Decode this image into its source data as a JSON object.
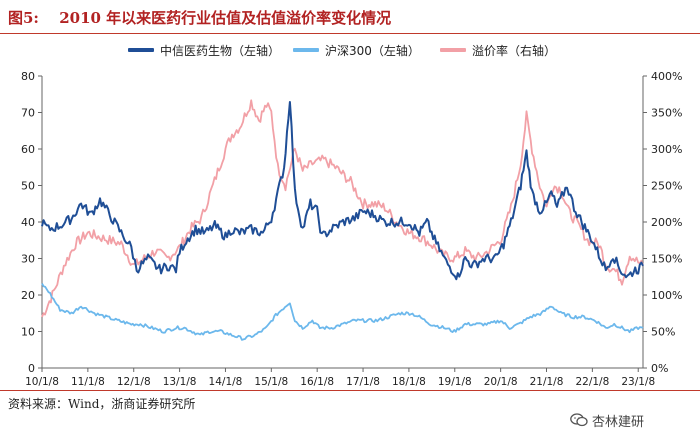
{
  "figure": {
    "title": "图5:　 2010 年以来医药行业估值及估值溢价率变化情况",
    "source": "资料来源：Wind，浙商证券研究所",
    "watermark": "杏林建研"
  },
  "colors": {
    "pharma": "#1f4e96",
    "hs300": "#6cb8ec",
    "premium": "#f2a0a6",
    "title": "#b22222",
    "axis": "#666666"
  },
  "chart_data": {
    "type": "line",
    "legend_position": "top",
    "grid": false,
    "x_ticks": [
      "10/1/8",
      "11/1/8",
      "12/1/8",
      "13/1/8",
      "14/1/8",
      "15/1/8",
      "16/1/8",
      "17/1/8",
      "18/1/8",
      "19/1/8",
      "20/1/8",
      "21/1/8",
      "22/1/8",
      "23/1/8"
    ],
    "y_left": {
      "min": 0,
      "max": 80,
      "ticks": [
        "0",
        "10",
        "20",
        "30",
        "40",
        "50",
        "60",
        "70",
        "80"
      ]
    },
    "y_right": {
      "min": 0,
      "max": 400,
      "ticks": [
        "0%",
        "50%",
        "100%",
        "150%",
        "200%",
        "250%",
        "300%",
        "350%",
        "400%"
      ]
    },
    "series": [
      {
        "name": "中信医药生物（左轴）",
        "axis": "left",
        "color_key": "pharma",
        "points": [
          [
            "2010-01-08",
            40
          ],
          [
            "2010-03-01",
            38
          ],
          [
            "2010-06-01",
            39
          ],
          [
            "2010-09-01",
            41
          ],
          [
            "2010-11-15",
            45
          ],
          [
            "2011-02-01",
            42
          ],
          [
            "2011-04-15",
            46
          ],
          [
            "2011-07-01",
            42
          ],
          [
            "2011-10-01",
            37
          ],
          [
            "2011-12-20",
            33
          ],
          [
            "2012-02-01",
            27
          ],
          [
            "2012-05-01",
            30
          ],
          [
            "2012-08-01",
            27
          ],
          [
            "2012-10-15",
            28
          ],
          [
            "2012-12-10",
            27
          ],
          [
            "2013-01-08",
            32
          ],
          [
            "2013-03-01",
            35
          ],
          [
            "2013-05-15",
            38
          ],
          [
            "2013-08-01",
            37
          ],
          [
            "2013-10-15",
            39
          ],
          [
            "2014-01-08",
            36
          ],
          [
            "2014-03-01",
            38
          ],
          [
            "2014-05-01",
            37
          ],
          [
            "2014-08-01",
            38
          ],
          [
            "2014-11-01",
            37
          ],
          [
            "2015-01-08",
            41
          ],
          [
            "2015-03-01",
            48
          ],
          [
            "2015-04-20",
            55
          ],
          [
            "2015-06-05",
            74
          ],
          [
            "2015-07-15",
            48
          ],
          [
            "2015-09-15",
            38
          ],
          [
            "2015-11-15",
            45
          ],
          [
            "2016-01-08",
            43
          ],
          [
            "2016-02-15",
            36
          ],
          [
            "2016-05-01",
            38
          ],
          [
            "2016-08-01",
            40
          ],
          [
            "2016-11-01",
            41
          ],
          [
            "2017-01-08",
            43
          ],
          [
            "2017-04-01",
            42
          ],
          [
            "2017-07-01",
            40
          ],
          [
            "2017-10-01",
            40
          ],
          [
            "2018-01-08",
            40
          ],
          [
            "2018-04-01",
            37
          ],
          [
            "2018-06-01",
            40
          ],
          [
            "2018-08-01",
            35
          ],
          [
            "2018-11-01",
            29
          ],
          [
            "2019-01-08",
            26
          ],
          [
            "2019-02-01",
            25
          ],
          [
            "2019-04-01",
            30
          ],
          [
            "2019-06-01",
            28
          ],
          [
            "2019-09-01",
            30
          ],
          [
            "2019-12-01",
            30
          ],
          [
            "2020-02-01",
            34
          ],
          [
            "2020-04-01",
            40
          ],
          [
            "2020-06-15",
            50
          ],
          [
            "2020-08-01",
            59
          ],
          [
            "2020-09-15",
            48
          ],
          [
            "2020-11-15",
            43
          ],
          [
            "2021-01-08",
            45
          ],
          [
            "2021-02-15",
            48
          ],
          [
            "2021-04-01",
            44
          ],
          [
            "2021-06-20",
            50
          ],
          [
            "2021-08-15",
            44
          ],
          [
            "2021-10-15",
            40
          ],
          [
            "2022-01-08",
            35
          ],
          [
            "2022-03-01",
            31
          ],
          [
            "2022-04-25",
            27
          ],
          [
            "2022-06-20",
            31
          ],
          [
            "2022-08-15",
            27
          ],
          [
            "2022-10-15",
            25
          ],
          [
            "2022-12-15",
            27
          ],
          [
            "2023-01-08",
            27
          ],
          [
            "2023-02-15",
            28
          ]
        ]
      },
      {
        "name": "沪深300（左轴）",
        "axis": "left",
        "color_key": "hs300",
        "points": [
          [
            "2010-01-08",
            23
          ],
          [
            "2010-03-01",
            21
          ],
          [
            "2010-06-01",
            16
          ],
          [
            "2010-09-01",
            15
          ],
          [
            "2010-11-15",
            17
          ],
          [
            "2011-03-01",
            15
          ],
          [
            "2011-06-01",
            14
          ],
          [
            "2011-09-01",
            13
          ],
          [
            "2011-12-20",
            12
          ],
          [
            "2012-03-01",
            12
          ],
          [
            "2012-06-01",
            11
          ],
          [
            "2012-09-01",
            10
          ],
          [
            "2012-12-10",
            11
          ],
          [
            "2013-02-15",
            11
          ],
          [
            "2013-06-20",
            9
          ],
          [
            "2013-09-01",
            10
          ],
          [
            "2013-12-01",
            10
          ],
          [
            "2014-03-01",
            9
          ],
          [
            "2014-06-01",
            8
          ],
          [
            "2014-09-01",
            9
          ],
          [
            "2014-12-01",
            11
          ],
          [
            "2015-02-01",
            14
          ],
          [
            "2015-04-01",
            16
          ],
          [
            "2015-06-05",
            18
          ],
          [
            "2015-07-15",
            13
          ],
          [
            "2015-09-15",
            11
          ],
          [
            "2015-12-01",
            13
          ],
          [
            "2016-01-29",
            11
          ],
          [
            "2016-05-01",
            11
          ],
          [
            "2016-08-01",
            12
          ],
          [
            "2016-11-01",
            13
          ],
          [
            "2017-02-01",
            13
          ],
          [
            "2017-05-01",
            13
          ],
          [
            "2017-08-01",
            14
          ],
          [
            "2017-11-01",
            15
          ],
          [
            "2018-01-24",
            15
          ],
          [
            "2018-04-01",
            14
          ],
          [
            "2018-07-01",
            12
          ],
          [
            "2018-10-15",
            11
          ],
          [
            "2019-01-04",
            10
          ],
          [
            "2019-04-01",
            12
          ],
          [
            "2019-07-01",
            12
          ],
          [
            "2019-10-01",
            12
          ],
          [
            "2020-01-08",
            13
          ],
          [
            "2020-03-20",
            11
          ],
          [
            "2020-06-01",
            12
          ],
          [
            "2020-09-01",
            14
          ],
          [
            "2020-12-01",
            15
          ],
          [
            "2021-02-15",
            17
          ],
          [
            "2021-05-01",
            15
          ],
          [
            "2021-08-01",
            14
          ],
          [
            "2021-11-01",
            14
          ],
          [
            "2022-02-01",
            13
          ],
          [
            "2022-04-25",
            11
          ],
          [
            "2022-07-01",
            12
          ],
          [
            "2022-10-31",
            10
          ],
          [
            "2023-01-08",
            11
          ],
          [
            "2023-02-15",
            11
          ]
        ]
      },
      {
        "name": "溢价率（右轴）",
        "axis": "right",
        "color_key": "premium",
        "points": [
          [
            "2010-01-08",
            70
          ],
          [
            "2010-04-01",
            100
          ],
          [
            "2010-07-01",
            140
          ],
          [
            "2010-10-01",
            170
          ],
          [
            "2011-01-08",
            185
          ],
          [
            "2011-04-01",
            180
          ],
          [
            "2011-07-01",
            175
          ],
          [
            "2011-10-01",
            170
          ],
          [
            "2012-01-08",
            140
          ],
          [
            "2012-04-01",
            150
          ],
          [
            "2012-07-01",
            160
          ],
          [
            "2012-10-01",
            150
          ],
          [
            "2013-01-08",
            165
          ],
          [
            "2013-04-01",
            190
          ],
          [
            "2013-07-01",
            205
          ],
          [
            "2013-10-01",
            250
          ],
          [
            "2014-01-08",
            300
          ],
          [
            "2014-03-01",
            320
          ],
          [
            "2014-05-01",
            330
          ],
          [
            "2014-08-01",
            365
          ],
          [
            "2014-10-01",
            340
          ],
          [
            "2014-12-01",
            360
          ],
          [
            "2015-01-08",
            350
          ],
          [
            "2015-03-01",
            275
          ],
          [
            "2015-05-01",
            250
          ],
          [
            "2015-07-15",
            300
          ],
          [
            "2015-09-15",
            270
          ],
          [
            "2015-12-01",
            280
          ],
          [
            "2016-03-01",
            285
          ],
          [
            "2016-06-01",
            275
          ],
          [
            "2016-10-01",
            255
          ],
          [
            "2017-01-08",
            225
          ],
          [
            "2017-04-01",
            225
          ],
          [
            "2017-07-01",
            220
          ],
          [
            "2017-10-01",
            200
          ],
          [
            "2018-01-08",
            185
          ],
          [
            "2018-04-01",
            180
          ],
          [
            "2018-07-01",
            170
          ],
          [
            "2018-10-01",
            155
          ],
          [
            "2019-01-08",
            150
          ],
          [
            "2019-04-01",
            160
          ],
          [
            "2019-07-01",
            150
          ],
          [
            "2019-10-01",
            160
          ],
          [
            "2020-01-08",
            175
          ],
          [
            "2020-04-01",
            220
          ],
          [
            "2020-06-15",
            280
          ],
          [
            "2020-08-01",
            345
          ],
          [
            "2020-09-15",
            300
          ],
          [
            "2020-11-15",
            250
          ],
          [
            "2021-01-08",
            220
          ],
          [
            "2021-03-01",
            250
          ],
          [
            "2021-05-01",
            245
          ],
          [
            "2021-07-01",
            215
          ],
          [
            "2021-09-01",
            200
          ],
          [
            "2021-12-01",
            175
          ],
          [
            "2022-03-01",
            170
          ],
          [
            "2022-05-01",
            140
          ],
          [
            "2022-07-01",
            135
          ],
          [
            "2022-09-01",
            120
          ],
          [
            "2022-11-01",
            155
          ],
          [
            "2023-01-08",
            145
          ],
          [
            "2023-02-15",
            140
          ]
        ]
      }
    ]
  }
}
